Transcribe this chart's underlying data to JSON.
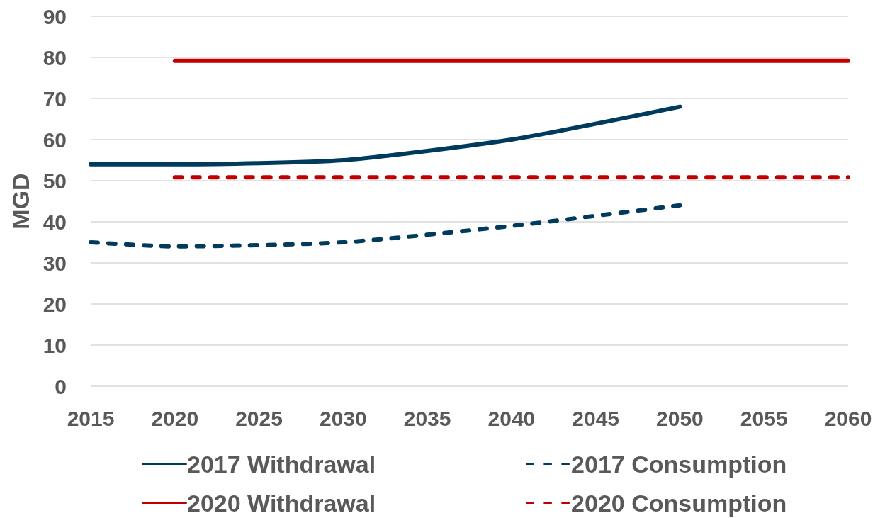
{
  "chart_data": {
    "type": "line",
    "ylabel": "MGD",
    "xlim": [
      2015,
      2060
    ],
    "xticks": [
      2015,
      2020,
      2025,
      2030,
      2035,
      2040,
      2045,
      2050,
      2055,
      2060
    ],
    "ylim": [
      0,
      90
    ],
    "yticks": [
      0,
      10,
      20,
      30,
      40,
      50,
      60,
      70,
      80,
      90
    ],
    "grid": "y",
    "legend": "bottom",
    "marker": "none",
    "series": [
      {
        "name": "2017 Withdrawal",
        "color": "#003a5d",
        "line_style": "solid",
        "x": [
          2015,
          2020,
          2030,
          2040,
          2050
        ],
        "values": [
          54,
          54,
          55,
          60,
          68
        ]
      },
      {
        "name": "2017 Consumption",
        "color": "#003a5d",
        "line_style": "dashed",
        "x": [
          2015,
          2020,
          2030,
          2040,
          2050
        ],
        "values": [
          35,
          34,
          35,
          39,
          44
        ]
      },
      {
        "name": "2020 Withdrawal",
        "color": "#c00000",
        "line_style": "solid",
        "x": [
          2020,
          2060
        ],
        "values": [
          79.2,
          79.2
        ]
      },
      {
        "name": "2020 Consumption",
        "color": "#c00000",
        "line_style": "dashed",
        "x": [
          2020,
          2060
        ],
        "values": [
          50.8,
          50.8
        ]
      }
    ]
  }
}
